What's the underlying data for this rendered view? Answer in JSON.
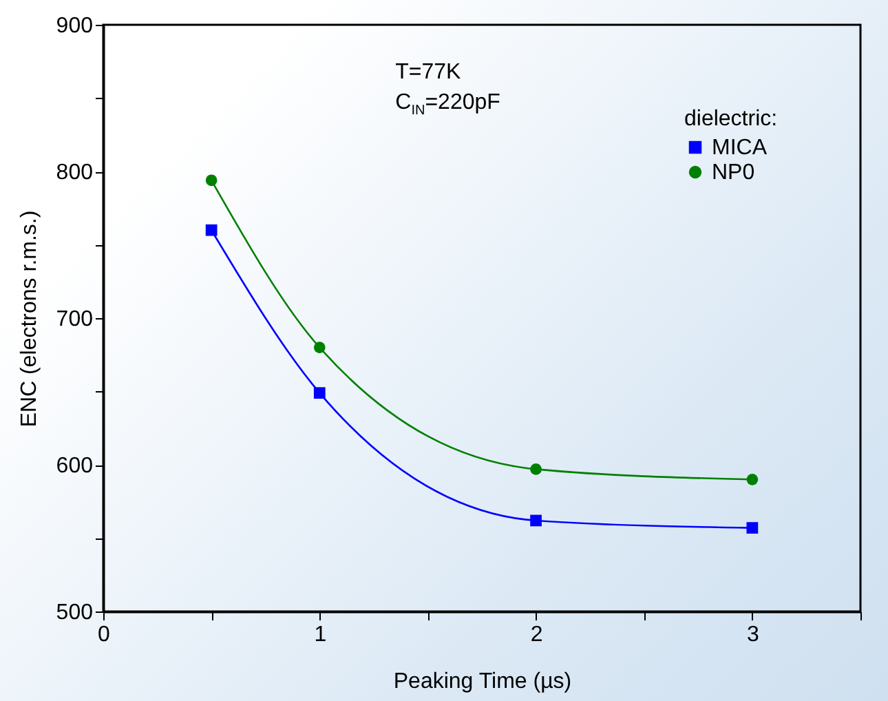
{
  "chart_data": {
    "type": "line",
    "xlabel": "Peaking Time (µs)",
    "ylabel": "ENC (electrons r.m.s.)",
    "annotations": [
      "T=77K",
      "C$_{IN}$=220pF"
    ],
    "legend_title": "dielectric:",
    "legend": "top right",
    "x": [
      0.5,
      1,
      2,
      3
    ],
    "series": [
      {
        "name": "MICA",
        "color": "#0000ff",
        "marker": "square",
        "values": [
          760,
          649,
          562,
          557
        ]
      },
      {
        "name": "NP0",
        "color": "#008000",
        "marker": "circle",
        "values": [
          794,
          680,
          597,
          590
        ]
      }
    ],
    "xlim": [
      0,
      3.5
    ],
    "xticks": [
      0,
      {
        "value": 0.5,
        "label": null
      },
      1,
      {
        "value": 1.5,
        "label": null
      },
      2,
      {
        "value": 2.5,
        "label": null
      },
      3,
      {
        "value": 3.5,
        "label": null
      }
    ],
    "ylim": [
      500,
      900
    ],
    "yticks": [
      500,
      {
        "value": 550,
        "label": null
      },
      600,
      {
        "value": 650,
        "label": null
      },
      700,
      {
        "value": 750,
        "label": null
      },
      800,
      {
        "value": 850,
        "label": null
      },
      900
    ],
    "grid": false
  }
}
